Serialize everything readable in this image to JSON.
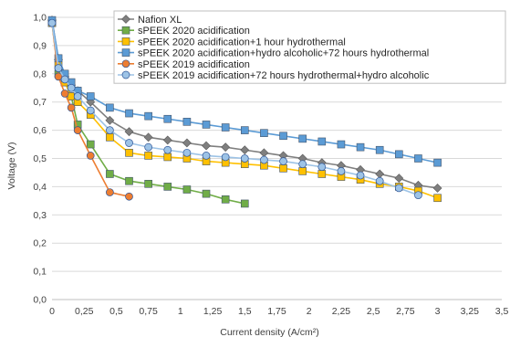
{
  "chart_data": {
    "type": "line",
    "title": "",
    "xlabel": "Current density (A/cm²)",
    "ylabel": "Voltage (V)",
    "xlim": [
      0,
      3.5
    ],
    "ylim": [
      0,
      1.0
    ],
    "x_ticks": [
      "0",
      "0,25",
      "0,5",
      "0,75",
      "1",
      "1,25",
      "1,5",
      "1,75",
      "2",
      "2,25",
      "2,5",
      "2,75",
      "3",
      "3,25",
      "3,5"
    ],
    "y_ticks": [
      "0,0",
      "0,1",
      "0,2",
      "0,3",
      "0,4",
      "0,5",
      "0,6",
      "0,7",
      "0,8",
      "0,9",
      "1,0"
    ],
    "grid": "horizontal",
    "legend_position": "top-right",
    "series": [
      {
        "name": "Nafion XL",
        "color": "#7f7f7f",
        "marker": "diamond",
        "x": [
          0,
          0.05,
          0.1,
          0.15,
          0.2,
          0.3,
          0.45,
          0.6,
          0.75,
          0.9,
          1.05,
          1.2,
          1.35,
          1.5,
          1.65,
          1.8,
          1.95,
          2.1,
          2.25,
          2.4,
          2.55,
          2.7,
          2.85,
          3.0
        ],
        "y": [
          0.99,
          0.85,
          0.79,
          0.76,
          0.74,
          0.7,
          0.635,
          0.595,
          0.575,
          0.565,
          0.555,
          0.545,
          0.54,
          0.53,
          0.52,
          0.51,
          0.5,
          0.485,
          0.475,
          0.46,
          0.445,
          0.43,
          0.405,
          0.395
        ]
      },
      {
        "name": "sPEEK 2020 acidification",
        "color": "#70ad47",
        "marker": "square",
        "x": [
          0,
          0.05,
          0.1,
          0.15,
          0.2,
          0.3,
          0.45,
          0.6,
          0.75,
          0.9,
          1.05,
          1.2,
          1.35,
          1.5
        ],
        "y": [
          0.98,
          0.8,
          0.77,
          0.72,
          0.62,
          0.55,
          0.445,
          0.42,
          0.41,
          0.4,
          0.39,
          0.375,
          0.355,
          0.34
        ]
      },
      {
        "name": "sPEEK 2020 acidification+1 hour hydrothermal",
        "color": "#ffc000",
        "marker": "square",
        "x": [
          0,
          0.05,
          0.1,
          0.15,
          0.2,
          0.3,
          0.45,
          0.6,
          0.75,
          0.9,
          1.05,
          1.2,
          1.35,
          1.5,
          1.65,
          1.8,
          1.95,
          2.1,
          2.25,
          2.4,
          2.55,
          2.7,
          2.85,
          3.0
        ],
        "y": [
          0.98,
          0.83,
          0.77,
          0.72,
          0.7,
          0.655,
          0.575,
          0.52,
          0.51,
          0.505,
          0.5,
          0.49,
          0.485,
          0.48,
          0.475,
          0.465,
          0.455,
          0.445,
          0.435,
          0.425,
          0.41,
          0.4,
          0.385,
          0.36
        ]
      },
      {
        "name": "sPEEK 2020 acidification+hydro alcoholic+72 hours hydrothermal",
        "color": "#5b9bd5",
        "marker": "square",
        "x": [
          0,
          0.05,
          0.1,
          0.15,
          0.2,
          0.3,
          0.45,
          0.6,
          0.75,
          0.9,
          1.05,
          1.2,
          1.35,
          1.5,
          1.65,
          1.8,
          1.95,
          2.1,
          2.25,
          2.4,
          2.55,
          2.7,
          2.85,
          3.0
        ],
        "y": [
          0.99,
          0.855,
          0.8,
          0.77,
          0.74,
          0.72,
          0.68,
          0.66,
          0.65,
          0.64,
          0.63,
          0.62,
          0.61,
          0.6,
          0.59,
          0.58,
          0.57,
          0.56,
          0.55,
          0.54,
          0.53,
          0.515,
          0.5,
          0.485
        ]
      },
      {
        "name": "sPEEK 2019 acidification",
        "color": "#ed7d31",
        "marker": "circle",
        "x": [
          0,
          0.05,
          0.1,
          0.15,
          0.2,
          0.3,
          0.45,
          0.6
        ],
        "y": [
          0.98,
          0.79,
          0.73,
          0.68,
          0.6,
          0.51,
          0.38,
          0.365
        ]
      },
      {
        "name": "sPEEK 2019 acidification+72 hours hydrothermal+hydro alcoholic",
        "color": "#9dc3e6",
        "marker": "circle",
        "x": [
          0,
          0.05,
          0.1,
          0.15,
          0.2,
          0.3,
          0.45,
          0.6,
          0.75,
          0.9,
          1.05,
          1.2,
          1.35,
          1.5,
          1.65,
          1.8,
          1.95,
          2.1,
          2.25,
          2.4,
          2.55,
          2.7,
          2.85,
          3.0
        ],
        "y": [
          0.98,
          0.82,
          0.78,
          0.75,
          0.72,
          0.67,
          0.6,
          0.555,
          0.54,
          0.53,
          0.52,
          0.51,
          0.505,
          0.5,
          0.495,
          0.49,
          0.48,
          0.47,
          0.455,
          0.44,
          0.42,
          0.395,
          0.37,
          null
        ]
      }
    ]
  }
}
